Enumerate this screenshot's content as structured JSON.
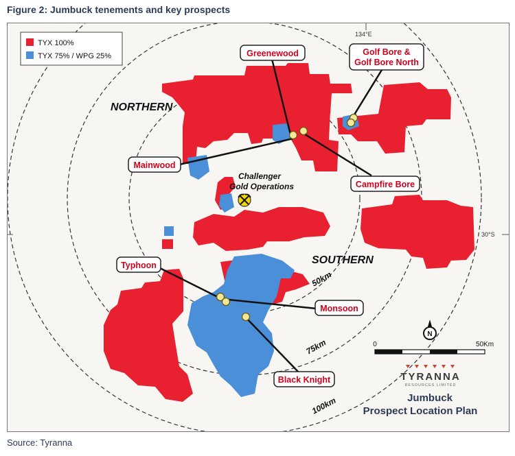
{
  "figure_title": "Figure 2: Jumbuck tenements and key prospects",
  "source": "Source: Tyranna",
  "legend": [
    {
      "label": "TYX 100%",
      "color": "#e8202f"
    },
    {
      "label": "TYX 75% / WPG 25%",
      "color": "#4a8fd8"
    }
  ],
  "grid": {
    "longitude": "134°E",
    "latitude": "30°S"
  },
  "rings": [
    "50km",
    "75km",
    "100km"
  ],
  "regions": {
    "north": "NORTHERN",
    "south": "SOUTHERN"
  },
  "operation": {
    "line1": "Challenger",
    "line2": "Gold Operations",
    "icon": "mine-pickaxe-icon"
  },
  "prospects": {
    "greenewood": "Greenewood",
    "golf_bore_1": "Golf Bore &",
    "golf_bore_2": "Golf Bore North",
    "mainwood": "Mainwood",
    "campfire_bore": "Campfire Bore",
    "typhoon": "Typhoon",
    "monsoon": "Monsoon",
    "black_knight": "Black Knight"
  },
  "scale": {
    "start": "0",
    "end": "50Km"
  },
  "north_arrow": "N",
  "logo": {
    "name": "TYRANNA",
    "tagline": "RESOURCES LIMITED"
  },
  "plan_title": {
    "line1": "Jumbuck",
    "line2": "Prospect Location Plan"
  },
  "colors": {
    "tyx": "#e8202f",
    "jv": "#4a8fd8",
    "label_text": "#d0021b",
    "point": "#f2e79a"
  }
}
